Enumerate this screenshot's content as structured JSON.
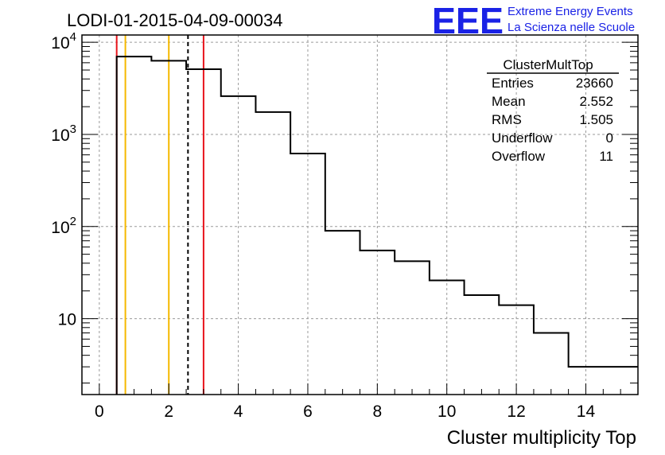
{
  "header": {
    "title": "LODI-01-2015-04-09-00034",
    "logo_text": "EEE",
    "logo_line1": "Extreme Energy Events",
    "logo_line2": "La Scienza nelle Scuole"
  },
  "stats_box": {
    "title": "ClusterMultTop",
    "rows": [
      {
        "label": "Entries",
        "value": "23660"
      },
      {
        "label": "Mean",
        "value": "2.552"
      },
      {
        "label": "RMS",
        "value": "1.505"
      },
      {
        "label": "Underflow",
        "value": "0"
      },
      {
        "label": "Overflow",
        "value": "11"
      }
    ]
  },
  "colors": {
    "red_line": "#e8141c",
    "orange_line": "#f5b800",
    "logo_blue": "#1a22e6",
    "grid": "#9a9a9a"
  },
  "chart_data": {
    "type": "histogram",
    "xlabel": "Cluster multiplicity Top",
    "ylabel": "",
    "xlim": [
      -0.5,
      15.5
    ],
    "ylim": [
      1.5,
      12000
    ],
    "yscale": "log",
    "grid": true,
    "x_ticks": [
      0,
      2,
      4,
      6,
      8,
      10,
      12,
      14
    ],
    "x_tick_labels": [
      "0",
      "2",
      "4",
      "6",
      "8",
      "10",
      "12",
      "14"
    ],
    "y_ticks": [
      10,
      100,
      1000,
      10000
    ],
    "y_tick_labels": [
      {
        "base": "10",
        "exp": ""
      },
      {
        "base": "10",
        "exp": "2"
      },
      {
        "base": "10",
        "exp": "3"
      },
      {
        "base": "10",
        "exp": "4"
      }
    ],
    "bin_edges": [
      0.5,
      1.5,
      2.5,
      3.5,
      4.5,
      5.5,
      6.5,
      7.5,
      8.5,
      9.5,
      10.5,
      11.5,
      12.5,
      13.5,
      15.5
    ],
    "bin_contents": [
      7000,
      6300,
      5100,
      2600,
      1750,
      620,
      90,
      55,
      42,
      26,
      18,
      14,
      7,
      3
    ],
    "vertical_lines": [
      {
        "x": 0.5,
        "color": "red",
        "style": "solid"
      },
      {
        "x": 0.75,
        "color": "orange",
        "style": "solid"
      },
      {
        "x": 2.0,
        "color": "orange",
        "style": "solid"
      },
      {
        "x": 2.552,
        "color": "black",
        "style": "dashed"
      },
      {
        "x": 3.0,
        "color": "red",
        "style": "solid"
      }
    ]
  }
}
